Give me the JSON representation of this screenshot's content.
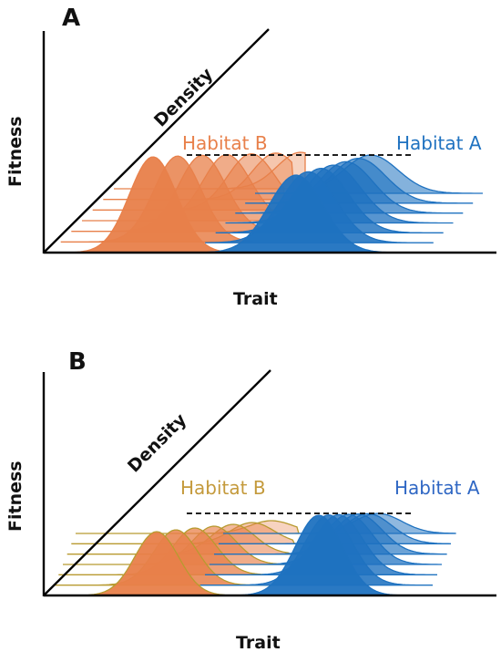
{
  "colors": {
    "habitat_a": "#1f72c0",
    "habitat_b": "#e8804a",
    "habitat_b_panel_b_label": "#c49a3c",
    "habitat_b_panel_b_line": "#b89a30",
    "axis": "#000000",
    "dashed_line": "#000000"
  },
  "panels": [
    {
      "letter": "A",
      "x_axis_label": "Trait",
      "y_axis_label": "Fitness",
      "depth_axis_label": "Density",
      "habitat_a_label": "Habitat A",
      "habitat_b_label": "Habitat B"
    },
    {
      "letter": "B",
      "x_axis_label": "Trait",
      "y_axis_label": "Fitness",
      "depth_axis_label": "Density",
      "habitat_a_label": "Habitat A",
      "habitat_b_label": "Habitat B"
    }
  ]
}
